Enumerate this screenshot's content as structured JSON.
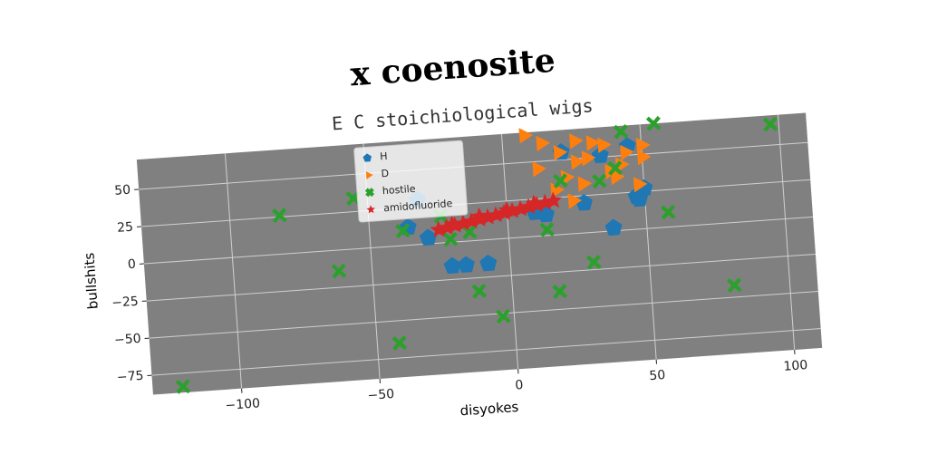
{
  "chart_data": {
    "type": "scatter",
    "title": "x coenosite",
    "subtitle": "E C stoichiological wigs",
    "xlabel": "disyokes",
    "ylabel": "bullshits",
    "xlim": [
      -132,
      110
    ],
    "ylim": [
      -88,
      70
    ],
    "xticks": [
      {
        "value": -100,
        "label": "−100"
      },
      {
        "value": -50,
        "label": "−50"
      },
      0,
      50,
      100
    ],
    "yticks": [
      {
        "value": -75,
        "label": "−75"
      },
      {
        "value": -50,
        "label": "−50"
      },
      {
        "value": -25,
        "label": "−25"
      },
      0,
      25,
      50
    ],
    "grid": true,
    "legend": "upper center",
    "background": "#808080",
    "series": [
      {
        "name": "H",
        "color": "#1f77b4",
        "marker": "pentagon",
        "x": [
          -32,
          -36,
          -29,
          -21,
          -16,
          -8,
          10,
          14,
          21,
          35,
          38,
          45,
          47,
          50,
          48,
          28
        ],
        "y": [
          30,
          12,
          4,
          -16,
          -16,
          -16,
          16,
          14,
          55,
          51,
          2,
          56,
          22,
          27,
          20,
          20
        ]
      },
      {
        "name": "D",
        "color": "#ff7f0e",
        "marker": "triangle",
        "x": [
          8,
          14,
          20,
          26,
          32,
          38,
          44,
          50,
          12,
          22,
          30,
          36,
          42,
          48,
          18,
          28,
          40,
          26,
          50,
          24
        ],
        "y": [
          68,
          62,
          55,
          48,
          60,
          40,
          52,
          48,
          45,
          38,
          50,
          58,
          44,
          30,
          30,
          33,
          36,
          62,
          56,
          22
        ]
      },
      {
        "name": "hostile",
        "color": "#2ca02c",
        "marker": "x",
        "x": [
          -121,
          -82,
          -62,
          -55,
          -42,
          -38,
          -24,
          -21,
          -14,
          -12,
          -4,
          14,
          17,
          30,
          34,
          40,
          43,
          55,
          58,
          80,
          97,
          20
        ],
        "y": [
          -84,
          26,
          -14,
          34,
          -65,
          10,
          18,
          2,
          6,
          -34,
          -52,
          4,
          -38,
          -20,
          34,
          42,
          66,
          70,
          10,
          -42,
          64,
          36
        ]
      },
      {
        "name": "amidofluoride",
        "color": "#d62728",
        "marker": "star",
        "x": [
          -25,
          -22,
          -19,
          -16,
          -13,
          -10,
          -7,
          -4,
          -1,
          2,
          5,
          8,
          11,
          14,
          17,
          -20,
          -10,
          0,
          10
        ],
        "y": [
          9,
          10,
          11,
          12,
          13,
          14,
          15,
          16,
          17,
          18,
          19,
          20,
          21,
          22,
          23,
          12,
          16,
          19,
          22
        ]
      }
    ]
  }
}
